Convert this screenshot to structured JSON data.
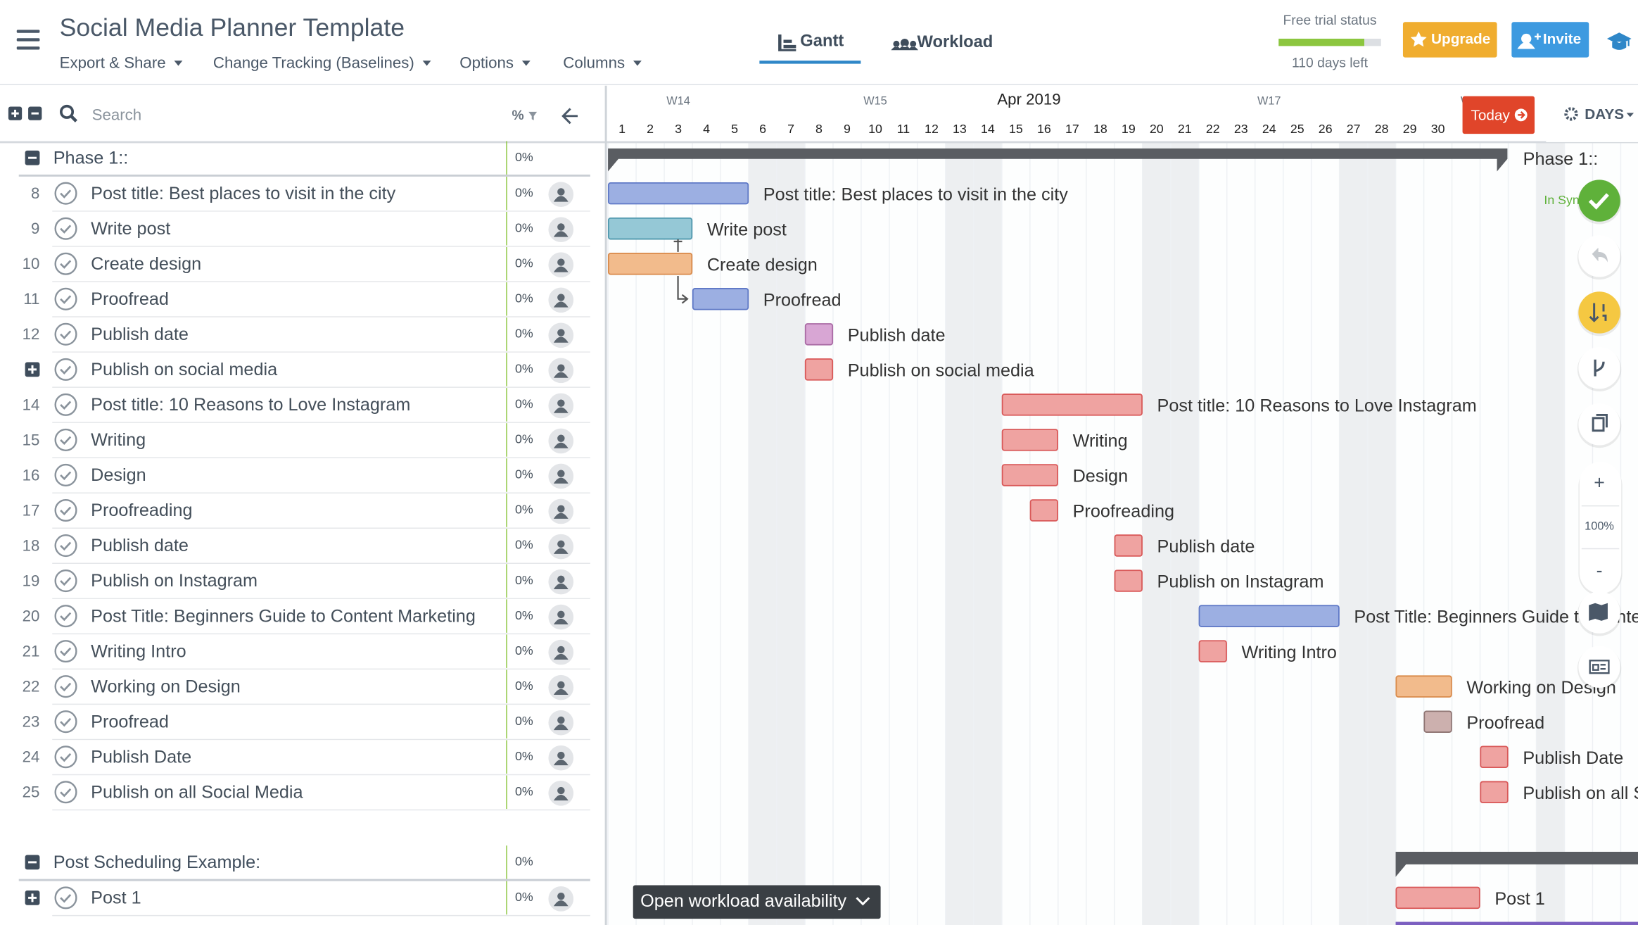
{
  "header": {
    "title": "Social Media Planner Template",
    "menus": [
      "Export & Share",
      "Change Tracking (Baselines)",
      "Options",
      "Columns"
    ],
    "tabs": [
      "Gantt",
      "Workload"
    ],
    "trial": {
      "label": "Free trial status",
      "days_left": "110 days left"
    },
    "buttons": [
      "Upgrade",
      "Invite"
    ]
  },
  "toolbar": {
    "search_placeholder": "Search",
    "percent_header": "%",
    "today": "Today",
    "zoom": "DAYS"
  },
  "timeline": {
    "month": "Apr 2019",
    "weeks": [
      "W14",
      "W15",
      "W17",
      "W"
    ],
    "days": [
      "1",
      "2",
      "3",
      "4",
      "5",
      "6",
      "7",
      "8",
      "9",
      "10",
      "11",
      "12",
      "13",
      "14",
      "15",
      "16",
      "17",
      "18",
      "19",
      "20",
      "21",
      "22",
      "23",
      "24",
      "25",
      "26",
      "27",
      "28",
      "29",
      "30"
    ]
  },
  "groups": [
    {
      "title": "Phase 1::",
      "percent": "0%",
      "tasks": [
        {
          "id": "8",
          "name": "Post title: Best places to visit in the city",
          "percent": "0%"
        },
        {
          "id": "9",
          "name": "Write post",
          "percent": "0%"
        },
        {
          "id": "10",
          "name": "Create design",
          "percent": "0%"
        },
        {
          "id": "11",
          "name": "Proofread",
          "percent": "0%"
        },
        {
          "id": "12",
          "name": "Publish date",
          "percent": "0%"
        },
        {
          "expandable": true,
          "name": "Publish on social media",
          "percent": "0%"
        },
        {
          "id": "14",
          "name": "Post title: 10 Reasons to Love Instagram",
          "percent": "0%"
        },
        {
          "id": "15",
          "name": "Writing",
          "percent": "0%"
        },
        {
          "id": "16",
          "name": "Design",
          "percent": "0%"
        },
        {
          "id": "17",
          "name": "Proofreading",
          "percent": "0%"
        },
        {
          "id": "18",
          "name": "Publish date",
          "percent": "0%"
        },
        {
          "id": "19",
          "name": "Publish on Instagram",
          "percent": "0%"
        },
        {
          "id": "20",
          "name": "Post Title: Beginners Guide to Content Marketing",
          "percent": "0%"
        },
        {
          "id": "21",
          "name": "Writing Intro",
          "percent": "0%"
        },
        {
          "id": "22",
          "name": "Working on Design",
          "percent": "0%"
        },
        {
          "id": "23",
          "name": "Proofread",
          "percent": "0%"
        },
        {
          "id": "24",
          "name": "Publish Date",
          "percent": "0%"
        },
        {
          "id": "25",
          "name": "Publish on all Social Media",
          "percent": "0%"
        }
      ]
    },
    {
      "title": "Post Scheduling Example:",
      "percent": "0%",
      "tasks": [
        {
          "expandable": true,
          "name": "Post 1",
          "percent": "0%"
        }
      ]
    }
  ],
  "gantt": {
    "phase_label": "Phase 1::",
    "status": "In Sync",
    "zoom_in": "+",
    "zoom_level": "100%",
    "zoom_out": "-",
    "workload_button": "Open workload availability"
  }
}
